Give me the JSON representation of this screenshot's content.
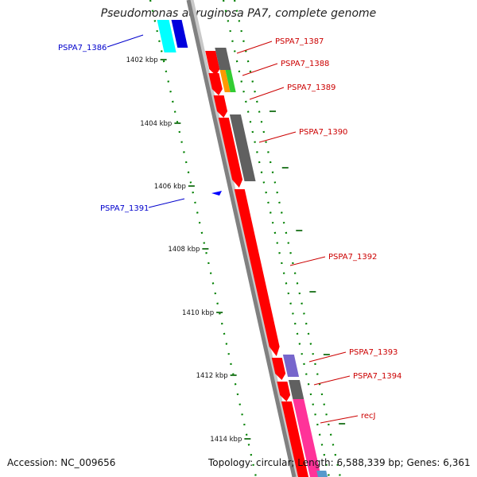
{
  "title": "Pseudomonas aeruginosa PA7, complete genome",
  "footer": {
    "accession": "Accession: NC_009656",
    "topology": "Topology: circular; Length: 6,588,339 bp; Genes: 6,361"
  },
  "colors": {
    "backbone": "#808080",
    "forward_label": "#cc0000",
    "reverse_label": "#0000cc",
    "tick_kbp": "#2e7d2e",
    "dotted_track": "#008000"
  },
  "kbp_labels": [
    "1402 kbp",
    "1404 kbp",
    "1406 kbp",
    "1408 kbp",
    "1410 kbp",
    "1412 kbp",
    "1414 kbp"
  ],
  "genes": [
    {
      "label": "PSPA7_1386",
      "strand": "reverse",
      "cog_colors": [
        "#00ffff",
        "#0000dd"
      ]
    },
    {
      "label": "PSPA7_1387",
      "strand": "forward",
      "cog_colors": [
        "#606060"
      ]
    },
    {
      "label": "PSPA7_1388",
      "strand": "forward",
      "cog_colors": [
        "#ff9900",
        "#33cc33"
      ]
    },
    {
      "label": "PSPA7_1389",
      "strand": "forward",
      "cog_colors": []
    },
    {
      "label": "PSPA7_1390",
      "strand": "forward",
      "cog_colors": [
        "#606060"
      ]
    },
    {
      "label": "PSPA7_1391",
      "strand": "reverse",
      "cog_colors": []
    },
    {
      "label": "PSPA7_1392",
      "strand": "forward",
      "cog_colors": []
    },
    {
      "label": "PSPA7_1393",
      "strand": "forward",
      "cog_colors": [
        "#7766cc"
      ]
    },
    {
      "label": "PSPA7_1394",
      "strand": "forward",
      "cog_colors": [
        "#606060"
      ]
    },
    {
      "label": "recJ",
      "strand": "forward",
      "cog_colors": [
        "#ff3399"
      ]
    }
  ]
}
